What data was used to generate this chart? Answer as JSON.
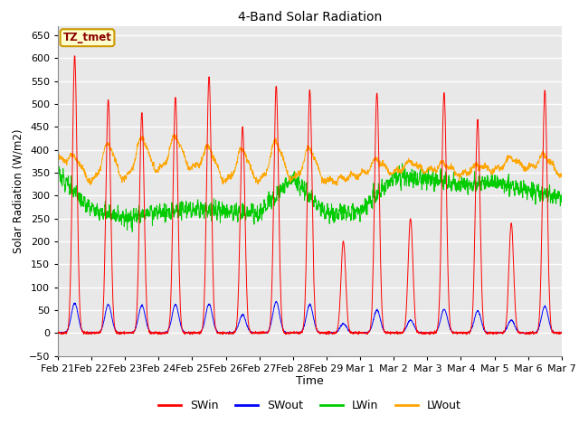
{
  "title": "4-Band Solar Radiation",
  "xlabel": "Time",
  "ylabel": "Solar Radiation (W/m2)",
  "ylim": [
    -50,
    670
  ],
  "yticks": [
    -50,
    0,
    50,
    100,
    150,
    200,
    250,
    300,
    350,
    400,
    450,
    500,
    550,
    600,
    650
  ],
  "annotation_text": "TZ_tmet",
  "annotation_box_color": "#FFFFCC",
  "annotation_box_edge": "#CC9900",
  "colors": {
    "SWin": "#FF0000",
    "SWout": "#0000FF",
    "LWin": "#00CC00",
    "LWout": "#FFA500"
  },
  "bg_color": "#E8E8E8",
  "grid_color": "#FFFFFF",
  "fig_bg": "#FFFFFF",
  "sw_peaks": [
    605,
    510,
    480,
    515,
    560,
    450,
    540,
    530,
    200,
    525,
    250,
    525,
    465,
    240,
    530
  ],
  "sw_out_peaks": [
    65,
    62,
    60,
    62,
    63,
    40,
    68,
    62,
    20,
    50,
    28,
    52,
    48,
    28,
    58
  ],
  "lwin_seg": [
    350,
    270,
    250,
    265,
    270,
    265,
    260,
    340,
    260,
    265,
    340,
    340,
    320,
    330,
    310,
    300
  ],
  "lwout_base": [
    380,
    330,
    335,
    355,
    360,
    330,
    330,
    335,
    330,
    345,
    350,
    355,
    345,
    355,
    360,
    345
  ],
  "lwout_peaks": [
    410,
    410,
    415,
    425,
    420,
    400,
    415,
    405,
    330,
    375,
    370,
    375,
    360,
    380,
    395
  ],
  "day_labels": [
    "Feb 21",
    "Feb 22",
    "Feb 23",
    "Feb 24",
    "Feb 25",
    "Feb 26",
    "Feb 27",
    "Feb 28",
    "Feb 29",
    "Mar 1",
    "Mar 2",
    "Mar 3",
    "Mar 4",
    "Mar 5",
    "Mar 6",
    "Mar 7"
  ]
}
